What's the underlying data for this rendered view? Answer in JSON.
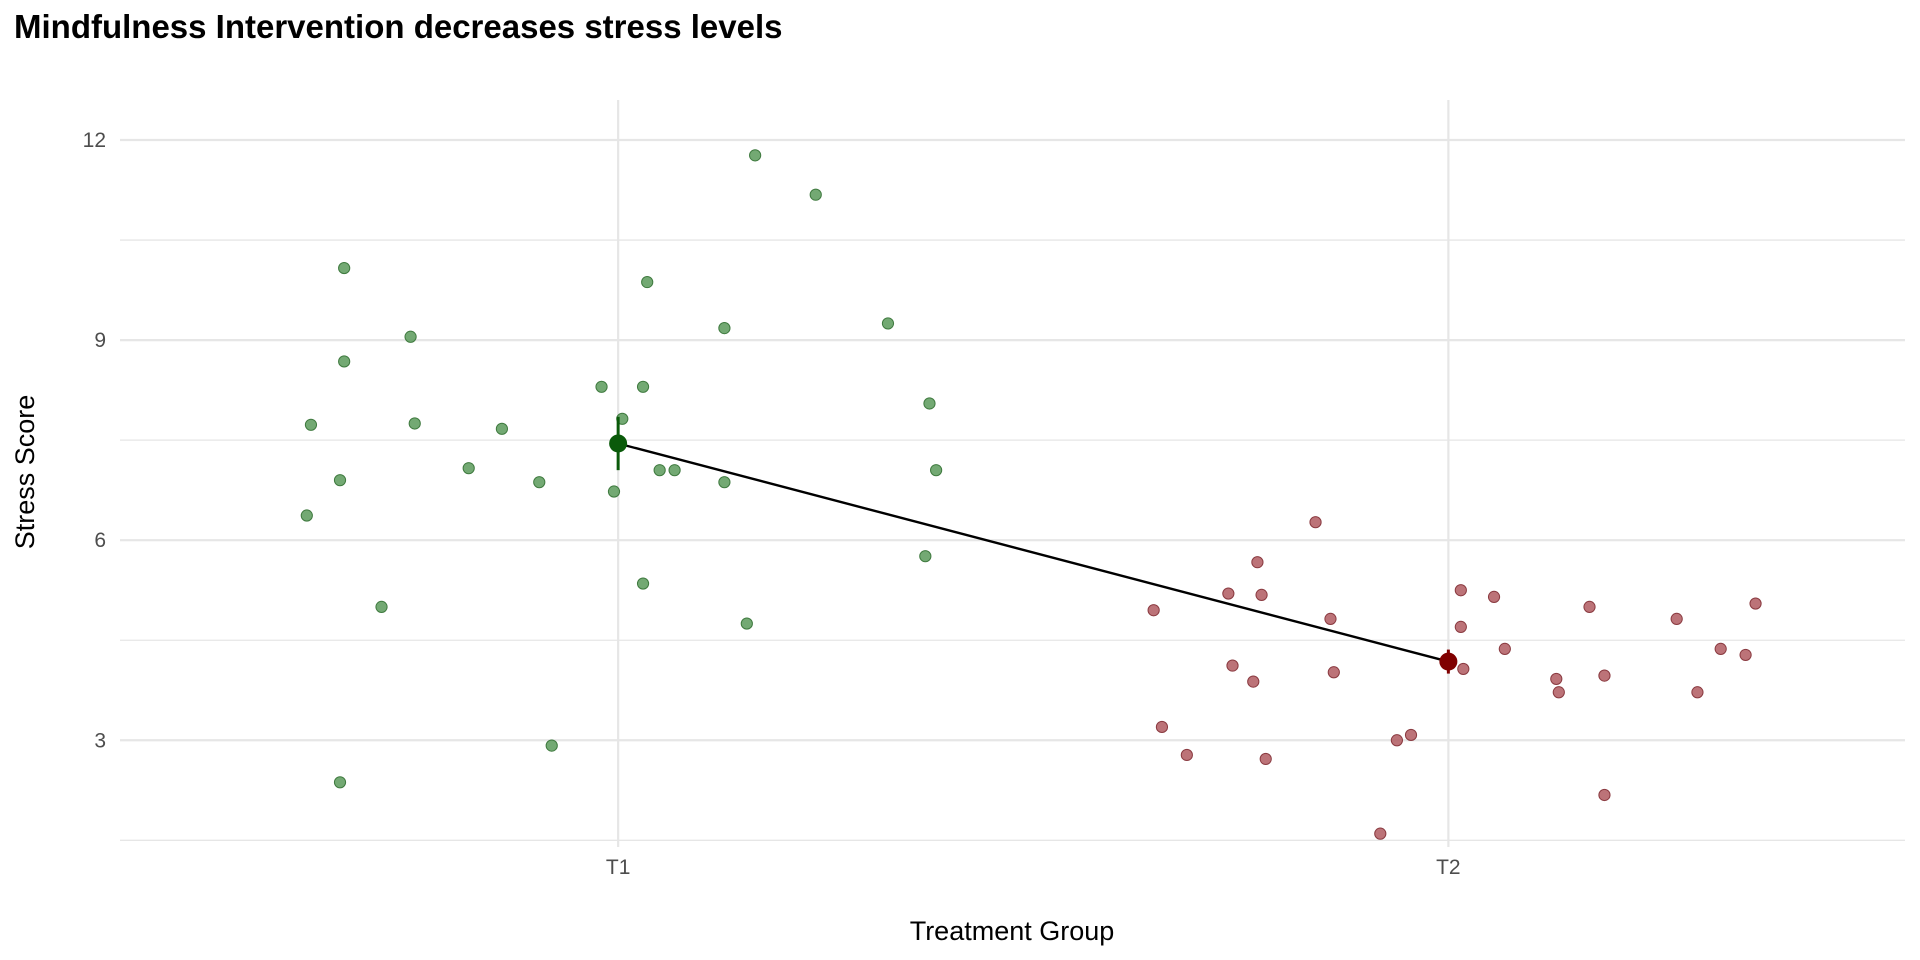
{
  "chart_data": {
    "type": "scatter",
    "title": "Mindfulness Intervention decreases stress levels",
    "xlabel": "Treatment Group",
    "ylabel": "Stress Score",
    "categories": [
      "T1",
      "T2"
    ],
    "ylim": [
      1.4,
      12.6
    ],
    "y_ticks": [
      3,
      6,
      9,
      12
    ],
    "grid": true,
    "legend": "none",
    "colors": {
      "T1_points": "#5a9a5a",
      "T2_points": "#b05a60",
      "T1_mean": "#0a5a0a",
      "T2_mean": "#800000",
      "line": "#000000",
      "grid": "#e6e6e6"
    },
    "series": [
      {
        "group": "T1",
        "points": [
          [
            0.67,
            10.08
          ],
          [
            0.67,
            8.68
          ],
          [
            0.75,
            9.05
          ],
          [
            0.755,
            7.75
          ],
          [
            0.63,
            7.73
          ],
          [
            0.665,
            6.9
          ],
          [
            0.625,
            6.37
          ],
          [
            0.715,
            5.0
          ],
          [
            0.665,
            2.37
          ],
          [
            0.82,
            7.08
          ],
          [
            0.86,
            7.67
          ],
          [
            0.905,
            6.87
          ],
          [
            0.92,
            2.92
          ],
          [
            0.98,
            8.3
          ],
          [
            0.995,
            6.73
          ],
          [
            1.005,
            7.82
          ],
          [
            1.03,
            8.3
          ],
          [
            1.035,
            9.87
          ],
          [
            1.05,
            7.05
          ],
          [
            1.068,
            7.05
          ],
          [
            1.03,
            5.35
          ],
          [
            1.128,
            9.18
          ],
          [
            1.128,
            6.87
          ],
          [
            1.155,
            4.75
          ],
          [
            1.165,
            11.77
          ],
          [
            1.238,
            11.18
          ],
          [
            1.325,
            9.25
          ],
          [
            1.37,
            5.76
          ],
          [
            1.375,
            8.05
          ],
          [
            1.383,
            7.05
          ]
        ],
        "mean": 7.45,
        "error": [
          7.05,
          7.85
        ]
      },
      {
        "group": "T2",
        "points": [
          [
            1.645,
            4.95
          ],
          [
            1.655,
            3.2
          ],
          [
            1.685,
            2.78
          ],
          [
            1.735,
            5.2
          ],
          [
            1.74,
            4.12
          ],
          [
            1.765,
            3.88
          ],
          [
            1.77,
            5.67
          ],
          [
            1.775,
            5.18
          ],
          [
            1.78,
            2.72
          ],
          [
            1.84,
            6.27
          ],
          [
            1.858,
            4.82
          ],
          [
            1.862,
            4.02
          ],
          [
            1.918,
            1.6
          ],
          [
            1.938,
            3.0
          ],
          [
            1.955,
            3.08
          ],
          [
            2.015,
            5.25
          ],
          [
            2.015,
            4.7
          ],
          [
            2.018,
            4.07
          ],
          [
            2.055,
            5.15
          ],
          [
            2.068,
            4.37
          ],
          [
            2.13,
            3.92
          ],
          [
            2.133,
            3.72
          ],
          [
            2.17,
            5.0
          ],
          [
            2.188,
            3.97
          ],
          [
            2.188,
            2.18
          ],
          [
            2.275,
            4.82
          ],
          [
            2.3,
            3.72
          ],
          [
            2.328,
            4.37
          ],
          [
            2.358,
            4.28
          ],
          [
            2.37,
            5.05
          ]
        ],
        "mean": 4.18,
        "error": [
          4.0,
          4.36
        ]
      }
    ]
  }
}
